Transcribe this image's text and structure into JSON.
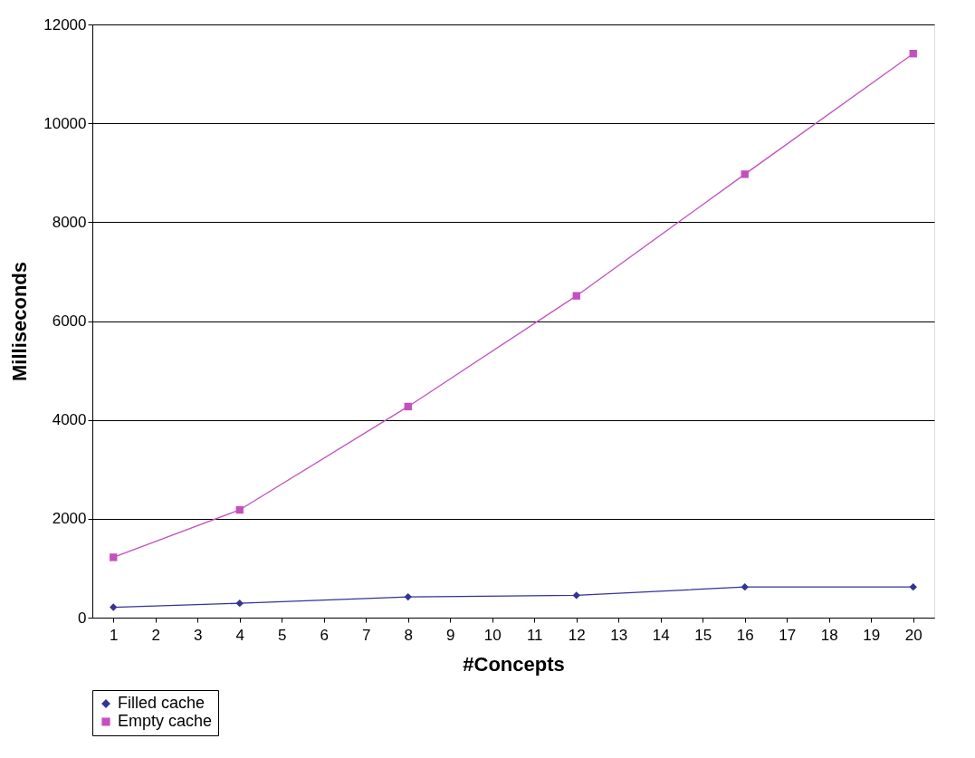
{
  "chart_data": {
    "type": "line",
    "xlabel": "#Concepts",
    "ylabel": "Milliseconds",
    "x": [
      1,
      4,
      8,
      12,
      16,
      20
    ],
    "series": [
      {
        "name": "Filled cache",
        "color": "#333399",
        "marker": "diamond",
        "values": [
          210,
          290,
          420,
          450,
          620,
          620
        ]
      },
      {
        "name": "Empty cache",
        "color": "#c64fc0",
        "marker": "square",
        "values": [
          1220,
          2180,
          4270,
          6510,
          8970,
          11410
        ]
      }
    ],
    "xlim": [
      0.5,
      20.5
    ],
    "xticks": [
      1,
      2,
      3,
      4,
      5,
      6,
      7,
      8,
      9,
      10,
      11,
      12,
      13,
      14,
      15,
      16,
      17,
      18,
      19,
      20
    ],
    "ylim": [
      0,
      12000
    ],
    "yticks": [
      0,
      2000,
      4000,
      6000,
      8000,
      10000,
      12000
    ],
    "grid": "y",
    "legend": "bottom",
    "line_style": "solid"
  }
}
